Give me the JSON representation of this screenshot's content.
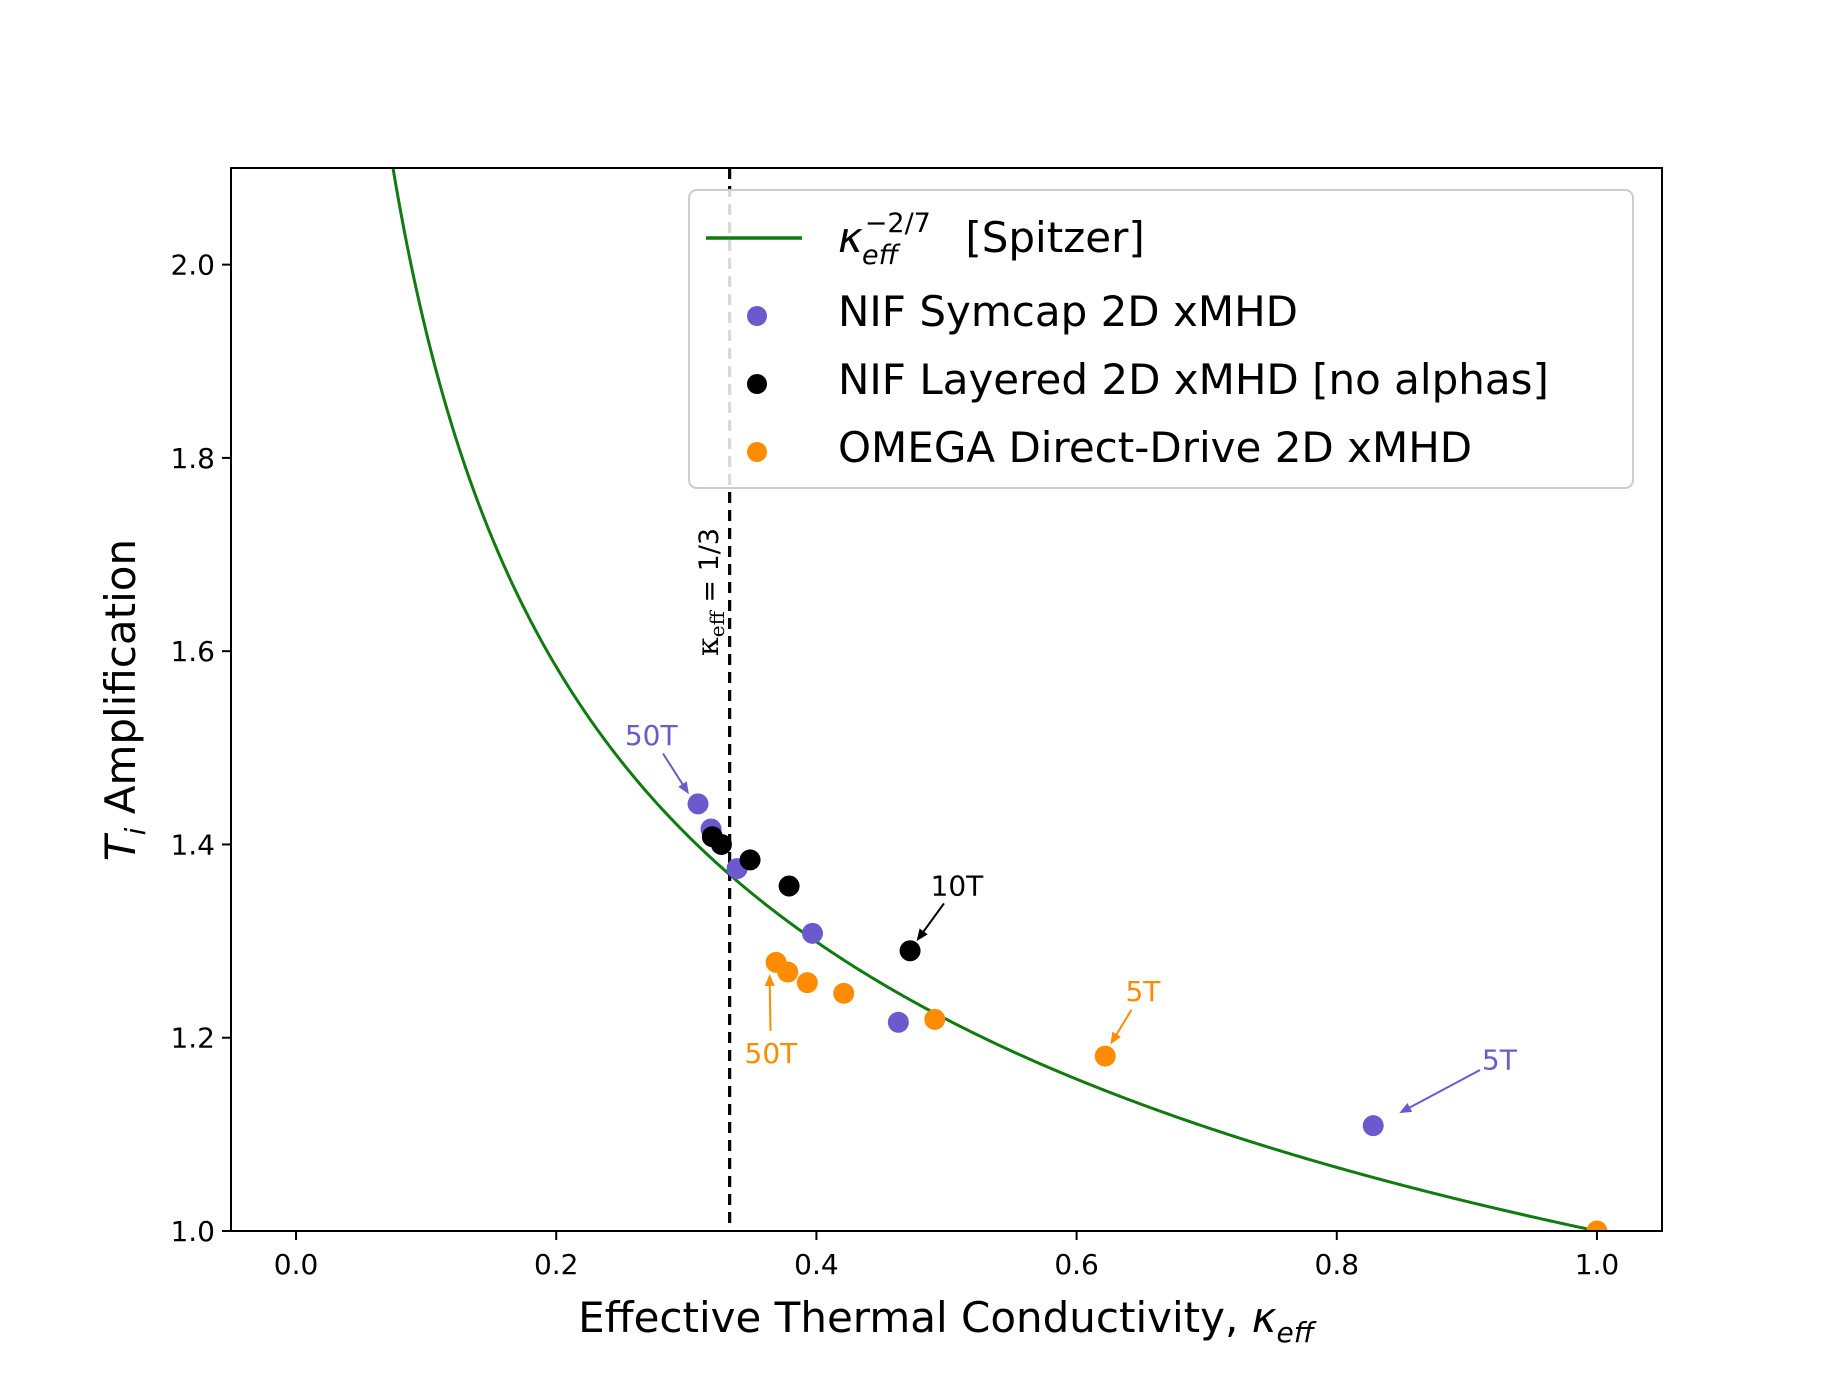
{
  "chart_data": {
    "type": "scatter",
    "xlabel_main": "Effective Thermal Conductivity, ",
    "xlabel_symbol": "κ",
    "xlabel_sub": "eff",
    "ylabel_symbol": "T",
    "ylabel_sub": "i",
    "ylabel_main": " Amplification",
    "xlim": [
      -0.05,
      1.05
    ],
    "ylim": [
      1.0,
      2.1
    ],
    "xticks": [
      {
        "v": 0.0,
        "label": "0.0"
      },
      {
        "v": 0.2,
        "label": "0.2"
      },
      {
        "v": 0.4,
        "label": "0.4"
      },
      {
        "v": 0.6,
        "label": "0.6"
      },
      {
        "v": 0.8,
        "label": "0.8"
      },
      {
        "v": 1.0,
        "label": "1.0"
      }
    ],
    "yticks": [
      {
        "v": 1.0,
        "label": "1.0"
      },
      {
        "v": 1.2,
        "label": "1.2"
      },
      {
        "v": 1.4,
        "label": "1.4"
      },
      {
        "v": 1.6,
        "label": "1.6"
      },
      {
        "v": 1.8,
        "label": "1.8"
      },
      {
        "v": 2.0,
        "label": "2.0"
      }
    ],
    "curve": {
      "name_symbol": "κ",
      "name_sub": "eff",
      "name_sup": "−2/7",
      "name_suffix": " [Spitzer]",
      "exponent": -0.2857142857,
      "color": "#117a11"
    },
    "vline": {
      "x": 0.3333,
      "label_symbol": "κ",
      "label_sub": "eff",
      "label_rest": " = 1/3",
      "color": "#000000"
    },
    "series": [
      {
        "name": "NIF Symcap 2D xMHD",
        "color": "#6a5acd",
        "points": [
          [
            0.309,
            1.442
          ],
          [
            0.319,
            1.416
          ],
          [
            0.339,
            1.375
          ],
          [
            0.397,
            1.308
          ],
          [
            0.463,
            1.216
          ],
          [
            0.828,
            1.109
          ]
        ]
      },
      {
        "name": "NIF Layered 2D xMHD [no alphas]",
        "color": "#000000",
        "points": [
          [
            0.32,
            1.408
          ],
          [
            0.327,
            1.4
          ],
          [
            0.349,
            1.384
          ],
          [
            0.379,
            1.357
          ],
          [
            0.472,
            1.29
          ]
        ]
      },
      {
        "name": "OMEGA Direct-Drive 2D xMHD",
        "color": "#ff8c00",
        "points": [
          [
            0.369,
            1.278
          ],
          [
            0.378,
            1.268
          ],
          [
            0.393,
            1.257
          ],
          [
            0.421,
            1.246
          ],
          [
            0.491,
            1.219
          ],
          [
            0.622,
            1.181
          ],
          [
            1.0,
            1.0
          ]
        ]
      }
    ],
    "annotations": [
      {
        "text": "50T",
        "color": "#6a5acd",
        "text_at": [
          0.273,
          1.503
        ],
        "arrow_to": [
          0.302,
          1.452
        ]
      },
      {
        "text": "10T",
        "color": "#000000",
        "text_at": [
          0.508,
          1.347
        ],
        "arrow_to": [
          0.477,
          1.3
        ]
      },
      {
        "text": "50T",
        "color": "#ff8c00",
        "text_at": [
          0.365,
          1.174
        ],
        "arrow_to": [
          0.364,
          1.266
        ]
      },
      {
        "text": "5T",
        "color": "#ff8c00",
        "text_at": [
          0.651,
          1.238
        ],
        "arrow_to": [
          0.626,
          1.193
        ]
      },
      {
        "text": "5T",
        "color": "#6a5acd",
        "text_at": [
          0.925,
          1.167
        ],
        "arrow_to": [
          0.848,
          1.122
        ]
      }
    ]
  }
}
